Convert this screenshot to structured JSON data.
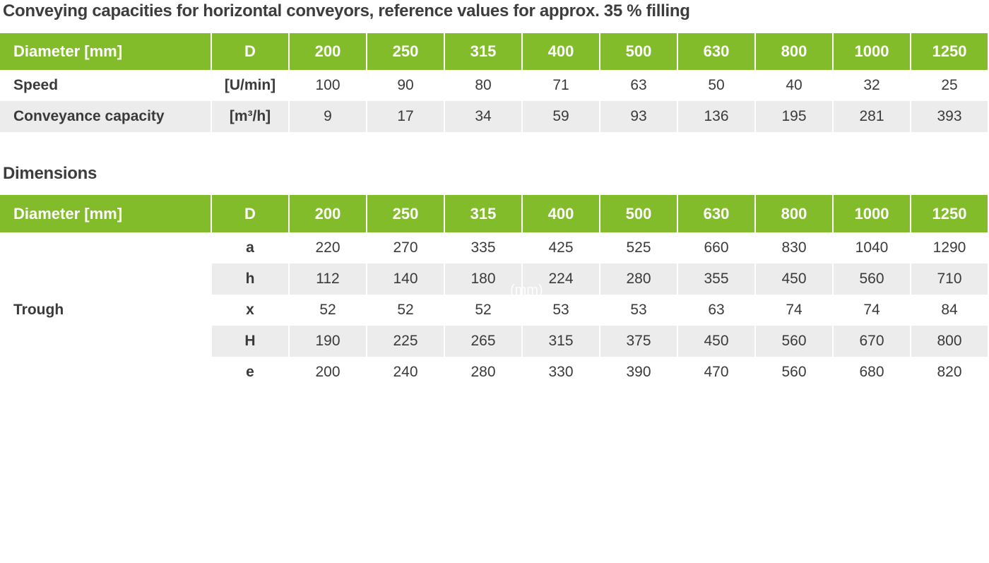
{
  "title1": "Conveying capacities for horizontal conveyors, reference values for approx. 35 % filling",
  "title2": "Dimensions",
  "header": {
    "label": "Diameter [mm]",
    "symbol": "D",
    "diameters": [
      "200",
      "250",
      "315",
      "400",
      "500",
      "630",
      "800",
      "1000",
      "1250"
    ]
  },
  "capacity_rows": [
    {
      "label": "Speed",
      "unit": "[U/min]",
      "values": [
        "100",
        "90",
        "80",
        "71",
        "63",
        "50",
        "40",
        "32",
        "25"
      ]
    },
    {
      "label": "Conveyance capacity",
      "unit": "[m³/h]",
      "values": [
        "9",
        "17",
        "34",
        "59",
        "93",
        "136",
        "195",
        "281",
        "393"
      ]
    }
  ],
  "trough_label": "Trough",
  "dimension_rows": [
    {
      "symbol": "a",
      "values": [
        "220",
        "270",
        "335",
        "425",
        "525",
        "660",
        "830",
        "1040",
        "1290"
      ]
    },
    {
      "symbol": "h",
      "values": [
        "112",
        "140",
        "180",
        "224",
        "280",
        "355",
        "450",
        "560",
        "710"
      ]
    },
    {
      "symbol": "x",
      "values": [
        "52",
        "52",
        "52",
        "53",
        "53",
        "63",
        "74",
        "74",
        "84"
      ]
    },
    {
      "symbol": "H",
      "values": [
        "190",
        "225",
        "265",
        "315",
        "375",
        "450",
        "560",
        "670",
        "800"
      ]
    },
    {
      "symbol": "e",
      "values": [
        "200",
        "240",
        "280",
        "330",
        "390",
        "470",
        "560",
        "680",
        "820"
      ]
    }
  ],
  "watermark": "(mm)",
  "colors": {
    "header_green": "#82bc2a",
    "row_gray": "#ececec",
    "text": "#3a3a3a"
  }
}
